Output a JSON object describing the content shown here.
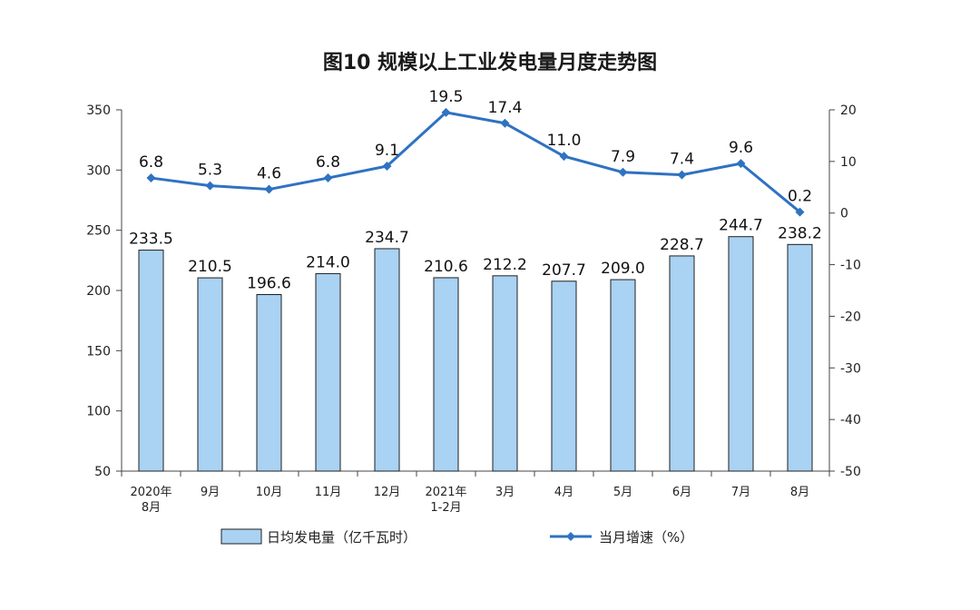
{
  "chart_data": {
    "type": "bar",
    "title": "图10  规模以上工业发电量月度走势图",
    "categories": [
      [
        "2020年",
        "8月"
      ],
      [
        "9月"
      ],
      [
        "10月"
      ],
      [
        "11月"
      ],
      [
        "12月"
      ],
      [
        "2021年",
        "1-2月"
      ],
      [
        "3月"
      ],
      [
        "4月"
      ],
      [
        "5月"
      ],
      [
        "6月"
      ],
      [
        "7月"
      ],
      [
        "8月"
      ]
    ],
    "series": [
      {
        "name": "日均发电量（亿千瓦时）",
        "type": "bar",
        "axis": "left",
        "values": [
          233.5,
          210.5,
          196.6,
          214.0,
          234.7,
          210.6,
          212.2,
          207.7,
          209.0,
          228.7,
          244.7,
          238.2
        ],
        "labels": [
          "233.5",
          "210.5",
          "196.6",
          "214.0",
          "234.7",
          "210.6",
          "212.2",
          "207.7",
          "209.0",
          "228.7",
          "244.7",
          "238.2"
        ]
      },
      {
        "name": "当月增速（%）",
        "type": "line",
        "axis": "right",
        "values": [
          6.8,
          5.3,
          4.6,
          6.8,
          9.1,
          19.5,
          17.4,
          11.0,
          7.9,
          7.4,
          9.6,
          0.2
        ],
        "labels": [
          "6.8",
          "5.3",
          "4.6",
          "6.8",
          "9.1",
          "19.5",
          "17.4",
          "11.0",
          "7.9",
          "7.4",
          "9.6",
          "0.2"
        ]
      }
    ],
    "y_left": {
      "min": 50,
      "max": 350,
      "ticks": [
        "50",
        "100",
        "150",
        "200",
        "250",
        "300",
        "350"
      ]
    },
    "y_right": {
      "min": -50,
      "max": 20,
      "ticks": [
        "-50",
        "-40",
        "-30",
        "-20",
        "-10",
        "0",
        "10",
        "20"
      ]
    },
    "legend_position": "bottom",
    "colors": {
      "bar_fill": "#a9d2f3",
      "bar_stroke": "#1f1f1f",
      "line": "#2f72c2",
      "axis": "#444444"
    }
  }
}
